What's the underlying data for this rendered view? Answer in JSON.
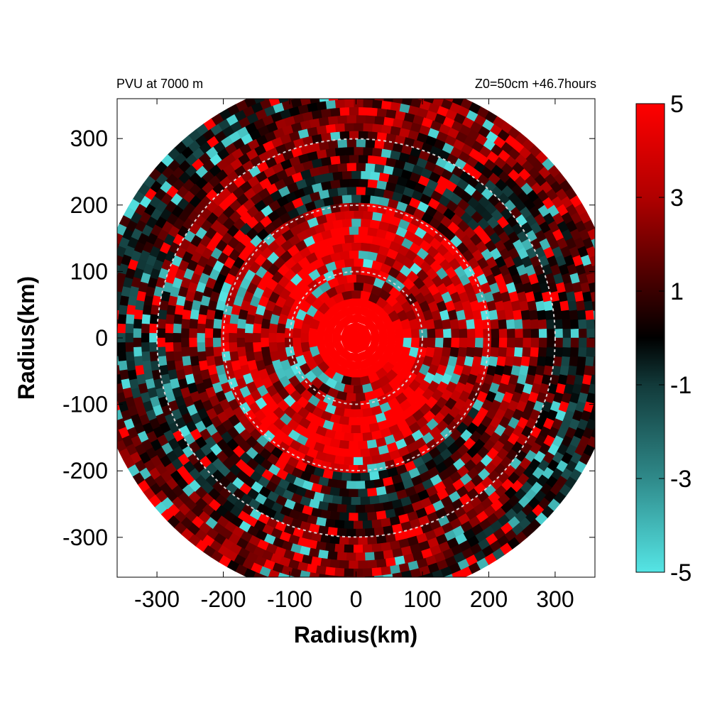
{
  "chart_data": {
    "type": "heatmap",
    "title_left": "PVU at  7000 m",
    "title_right": "Z0=50cm  +46.7hours",
    "xlabel": "Radius(km)",
    "ylabel": "Radius(km)",
    "xlim": [
      -360,
      360
    ],
    "ylim": [
      -360,
      360
    ],
    "x_ticks": [
      -300,
      -200,
      -100,
      0,
      100,
      200,
      300
    ],
    "y_ticks": [
      -300,
      -200,
      -100,
      0,
      100,
      200,
      300
    ],
    "domain_radius_km": 385,
    "range_rings_km": [
      100,
      200,
      300
    ],
    "colorbar": {
      "min": -5,
      "max": 5,
      "ticks": [
        5,
        3,
        1,
        -1,
        -3,
        -5
      ],
      "colors": {
        "high": "#ff0000",
        "mid": "#000000",
        "low": "#55e5e5"
      }
    },
    "features": {
      "eye_radius_km": 60,
      "eye_value": 5,
      "inner_band_mean": 3.5,
      "outer_region_mean": 1.0,
      "negative_anomaly_value": -5
    }
  }
}
